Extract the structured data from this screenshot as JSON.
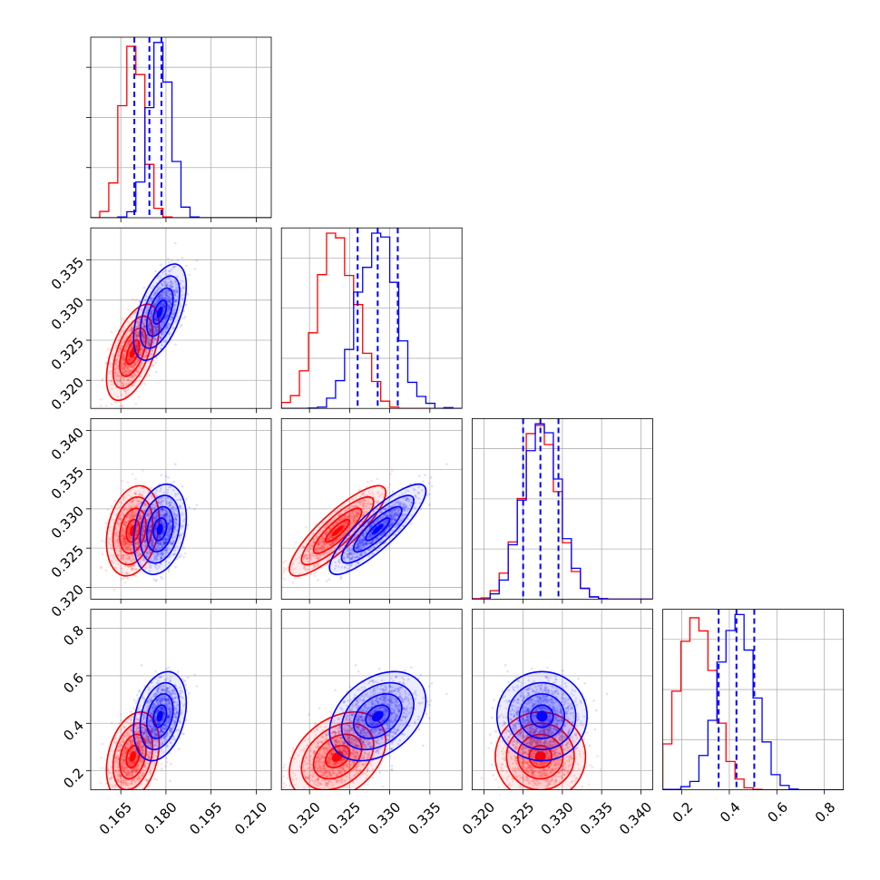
{
  "chart_data": {
    "type": "corner",
    "grid": true,
    "colors": {
      "series_a": "#ff0000",
      "series_b": "#0000ff",
      "quantiles": "#0000ff"
    },
    "parameters": [
      {
        "range": [
          0.155,
          0.215
        ],
        "ticks": [
          0.165,
          0.18,
          0.195,
          0.21
        ],
        "tick_labels": [
          "0.165",
          "0.180",
          "0.195",
          "0.210"
        ]
      },
      {
        "range": [
          0.3165,
          0.339
        ],
        "ticks": [
          0.32,
          0.325,
          0.33,
          0.335
        ],
        "tick_labels": [
          "0.320",
          "0.325",
          "0.330",
          "0.335"
        ]
      },
      {
        "range": [
          0.3185,
          0.3415
        ],
        "ticks": [
          0.32,
          0.325,
          0.33,
          0.335,
          0.34
        ],
        "tick_labels": [
          "0.320",
          "0.325",
          "0.330",
          "0.335",
          "0.340"
        ]
      },
      {
        "range": [
          0.12,
          0.88
        ],
        "ticks": [
          0.2,
          0.4,
          0.6,
          0.8
        ],
        "tick_labels": [
          "0.2",
          "0.4",
          "0.6",
          "0.8"
        ]
      }
    ],
    "series": [
      {
        "color": "#ff0000",
        "mean": [
          0.169,
          0.3235,
          0.3272,
          0.26
        ],
        "std": [
          0.0035,
          0.0024,
          0.0023,
          0.075
        ]
      },
      {
        "color": "#0000ff",
        "mean": [
          0.178,
          0.3285,
          0.3274,
          0.43
        ],
        "std": [
          0.0035,
          0.0024,
          0.0023,
          0.075
        ]
      }
    ],
    "correlations": [
      {
        "series": 0,
        "pairs": [
          [
            0,
            1,
            0.55
          ],
          [
            0,
            2,
            0.25
          ],
          [
            0,
            3,
            0.3
          ],
          [
            1,
            2,
            0.85
          ],
          [
            1,
            3,
            0.35
          ],
          [
            2,
            3,
            0.0
          ]
        ]
      },
      {
        "series": 1,
        "pairs": [
          [
            0,
            1,
            0.55
          ],
          [
            0,
            2,
            0.25
          ],
          [
            0,
            3,
            0.3
          ],
          [
            1,
            2,
            0.85
          ],
          [
            1,
            3,
            0.35
          ],
          [
            2,
            3,
            0.0
          ]
        ]
      }
    ],
    "quantiles": [
      [
        0.1695,
        0.1745,
        0.1785
      ],
      [
        0.326,
        0.3285,
        0.331
      ],
      [
        0.325,
        0.3272,
        0.3295
      ],
      [
        0.355,
        0.43,
        0.505
      ]
    ],
    "histogram_bins": 20,
    "contour_levels_sigma": [
      0.5,
      1.0,
      1.5,
      2.0
    ]
  }
}
